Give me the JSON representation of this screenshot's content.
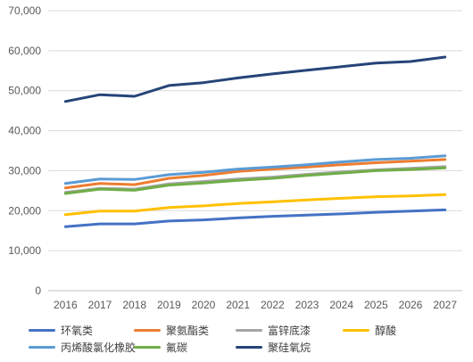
{
  "chart_data": {
    "type": "line",
    "title": "",
    "xlabel": "",
    "ylabel": "",
    "x": [
      "2016",
      "2017",
      "2018",
      "2019",
      "2020",
      "2021",
      "2022",
      "2023",
      "2024",
      "2025",
      "2026",
      "2027"
    ],
    "ylim": [
      0,
      70000
    ],
    "yticks": [
      0,
      10000,
      20000,
      30000,
      40000,
      50000,
      60000,
      70000
    ],
    "ytick_labels": [
      "0",
      "10,000",
      "20,000",
      "30,000",
      "40,000",
      "50,000",
      "60,000",
      "70,000"
    ],
    "grid": "horizontal",
    "legend_position": "bottom",
    "series": [
      {
        "name": "环氧类",
        "color": "#4472C4",
        "values": [
          16000,
          16700,
          16700,
          17400,
          17700,
          18200,
          18600,
          18900,
          19200,
          19600,
          19900,
          20200
        ]
      },
      {
        "name": "聚氨酯类",
        "color": "#ED7D31",
        "values": [
          25700,
          26800,
          26500,
          28100,
          28800,
          29800,
          30400,
          30900,
          31500,
          32000,
          32400,
          32800
        ]
      },
      {
        "name": "富锌底漆",
        "color": "#A5A5A5",
        "values": [
          24600,
          25600,
          25400,
          26700,
          27300,
          27900,
          28400,
          29100,
          29700,
          30200,
          30600,
          31000
        ]
      },
      {
        "name": "醇酸",
        "color": "#FFC000",
        "values": [
          19000,
          19900,
          19900,
          20800,
          21200,
          21800,
          22200,
          22700,
          23100,
          23500,
          23700,
          24000
        ]
      },
      {
        "name": "丙烯酸氯化橡胶",
        "color": "#5B9BD5",
        "values": [
          26800,
          27900,
          27800,
          29000,
          29600,
          30400,
          30900,
          31500,
          32200,
          32800,
          33100,
          33700
        ]
      },
      {
        "name": "氟碳",
        "color": "#70AD47",
        "values": [
          24300,
          25400,
          25100,
          26400,
          26900,
          27600,
          28100,
          28800,
          29400,
          30000,
          30300,
          30700
        ]
      },
      {
        "name": "聚硅氧烷",
        "color": "#264478",
        "values": [
          47300,
          49000,
          48600,
          51300,
          52000,
          53200,
          54200,
          55100,
          56000,
          56900,
          57300,
          58400
        ]
      }
    ]
  }
}
